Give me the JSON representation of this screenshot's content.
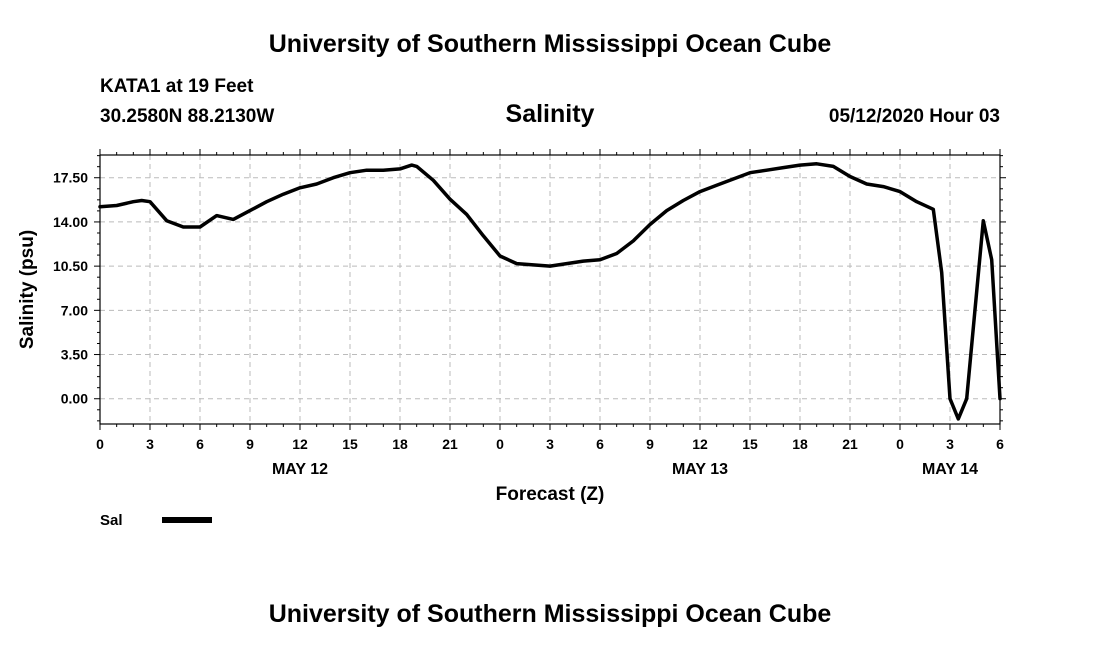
{
  "header": {
    "top_title": "University of Southern Mississippi Ocean Cube",
    "station": "KATA1 at 19 Feet",
    "location": "30.2580N 88.2130W",
    "chart_title": "Salinity",
    "run_time": "05/12/2020 Hour 03"
  },
  "footer": {
    "bottom_title": "University of Southern Mississippi Ocean Cube"
  },
  "chart_data": {
    "type": "line",
    "title": "Salinity",
    "xlabel": "Forecast (Z)",
    "ylabel": "Salinity (psu)",
    "ylim": [
      -2,
      19.3
    ],
    "xlim": [
      0,
      54
    ],
    "y_ticks": [
      0.0,
      3.5,
      7.0,
      10.5,
      14.0,
      17.5
    ],
    "y_tick_labels": [
      "0.00",
      "3.50",
      "7.00",
      "10.50",
      "14.00",
      "17.50"
    ],
    "x_ticks": [
      0,
      3,
      6,
      9,
      12,
      15,
      18,
      21,
      24,
      27,
      30,
      33,
      36,
      39,
      42,
      45,
      48,
      51,
      54
    ],
    "x_tick_labels": [
      "0",
      "3",
      "6",
      "9",
      "12",
      "15",
      "18",
      "21",
      "0",
      "3",
      "6",
      "9",
      "12",
      "15",
      "18",
      "21",
      "0",
      "3",
      "6"
    ],
    "date_labels": [
      {
        "label": "MAY 12",
        "at_hour": 12
      },
      {
        "label": "MAY 13",
        "at_hour": 36
      },
      {
        "label": "MAY 14",
        "at_hour": 51
      }
    ],
    "grid": true,
    "legend_position": "bottom-left",
    "series": [
      {
        "name": "Sal",
        "color": "#000000",
        "x": [
          0,
          1,
          2,
          2.5,
          3,
          4,
          5,
          6,
          7,
          8,
          9,
          10,
          11,
          12,
          13,
          14,
          15,
          16,
          17,
          18,
          18.7,
          19,
          20,
          21,
          22,
          23,
          24,
          25,
          26,
          27,
          28,
          29,
          30,
          31,
          32,
          33,
          34,
          35,
          36,
          37,
          38,
          39,
          40,
          41,
          42,
          43,
          44,
          45,
          46,
          47,
          48,
          49,
          50,
          50.5,
          51,
          51.5,
          52,
          53,
          53.5,
          54
        ],
        "y": [
          15.2,
          15.3,
          15.6,
          15.7,
          15.6,
          14.1,
          13.6,
          13.6,
          14.5,
          14.2,
          14.9,
          15.6,
          16.2,
          16.7,
          17.0,
          17.5,
          17.9,
          18.1,
          18.1,
          18.2,
          18.5,
          18.4,
          17.3,
          15.8,
          14.6,
          12.9,
          11.3,
          10.7,
          10.6,
          10.5,
          10.7,
          10.9,
          11.0,
          11.5,
          12.5,
          13.8,
          14.9,
          15.7,
          16.4,
          16.9,
          17.4,
          17.9,
          18.1,
          18.3,
          18.5,
          18.6,
          18.4,
          17.6,
          17.0,
          16.8,
          16.4,
          15.6,
          15.0,
          10.0,
          0.0,
          -1.6,
          0.0,
          14.1,
          11.0,
          0.0
        ]
      }
    ]
  }
}
